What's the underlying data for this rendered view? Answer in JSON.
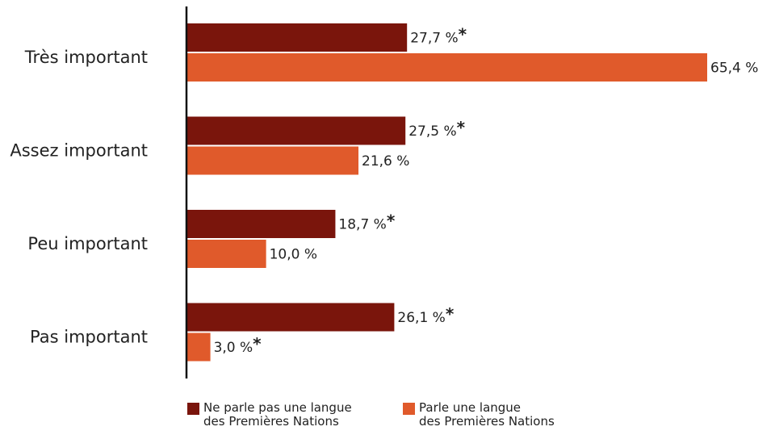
{
  "chart_data": {
    "type": "bar",
    "orientation": "horizontal",
    "categories": [
      "Très important",
      "Assez important",
      "Peu important",
      "Pas important"
    ],
    "series": [
      {
        "name": "Ne parle pas une langue des Premières Nations",
        "values": [
          27.7,
          27.5,
          18.7,
          26.1
        ],
        "labels": [
          "27,7 %",
          "27,5 %",
          "18,7 %",
          "26,1 %"
        ],
        "flags": [
          "*",
          "*",
          "*",
          "*"
        ],
        "color": "#7a150c"
      },
      {
        "name": "Parle une langue des Premières Nations",
        "values": [
          65.4,
          21.6,
          10.0,
          3.0
        ],
        "labels": [
          "65,4 %",
          "21,6 %",
          "10,0 %",
          "3,0 %"
        ],
        "flags": [
          "",
          "",
          "",
          "*"
        ],
        "color": "#e05a2b"
      }
    ],
    "xlim": [
      0,
      65.4
    ],
    "grid": false,
    "legend_position": "bottom"
  },
  "legend": {
    "items": [
      {
        "line1": "Ne parle pas une langue",
        "line2": "des Premières Nations",
        "color": "#7a150c"
      },
      {
        "line1": "Parle une langue",
        "line2": "des Premières Nations",
        "color": "#e05a2b"
      }
    ]
  }
}
